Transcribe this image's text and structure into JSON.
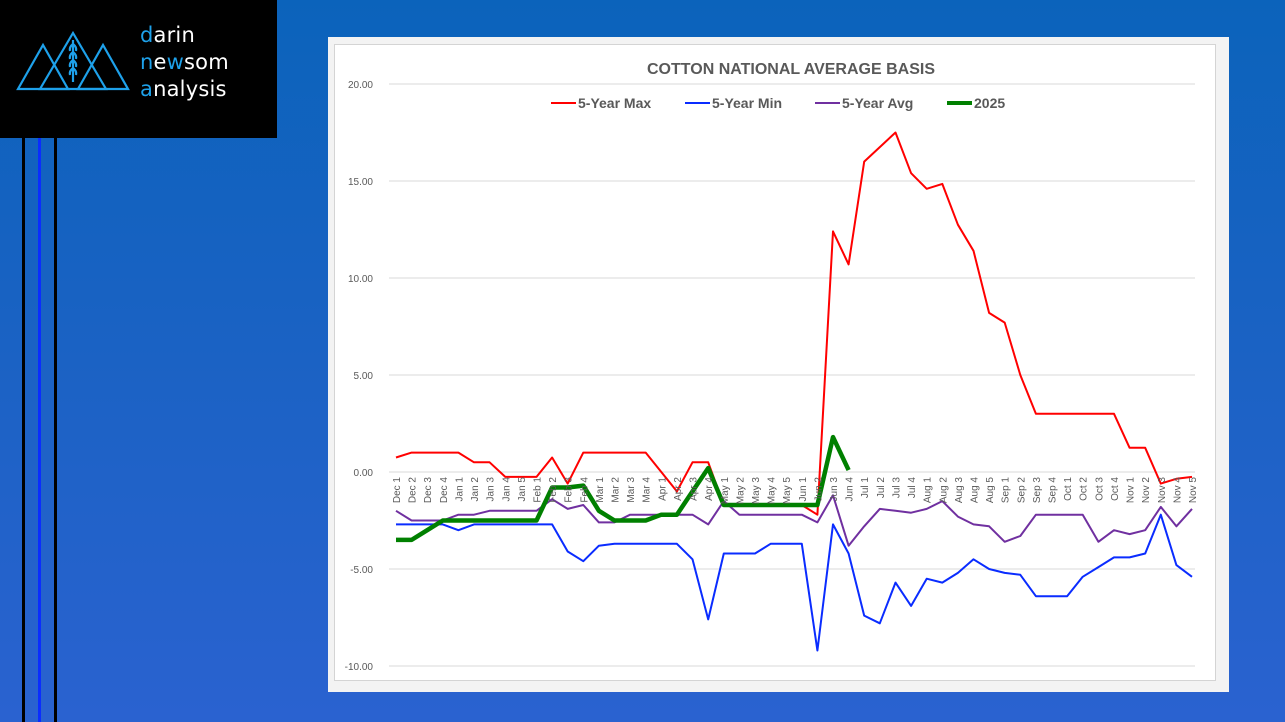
{
  "brand": {
    "line1_first": "d",
    "line1_rest": "arin",
    "line2_first": "n",
    "line2_mid1": "e",
    "line2_accent": "w",
    "line2_rest": "som",
    "line3_first": "a",
    "line3_rest": "nalysis",
    "accent_color": "#1ea1ea",
    "logo_icon": "mountains-wheat-icon"
  },
  "chart_data": {
    "type": "line",
    "title": "COTTON NATIONAL AVERAGE BASIS",
    "xlabel": "",
    "ylabel": "",
    "ylim": [
      -10,
      20
    ],
    "yticks": [
      "20.00",
      "15.00",
      "10.00",
      "5.00",
      "0.00",
      "-5.00",
      "-10.00"
    ],
    "ytick_values": [
      20,
      15,
      10,
      5,
      0,
      -5,
      -10
    ],
    "grid": true,
    "legend_position": "top",
    "categories": [
      "Dec 1",
      "Dec 2",
      "Dec 3",
      "Dec 4",
      "Jan 1",
      "Jan 2",
      "Jan 3",
      "Jan 4",
      "Jan 5",
      "Feb 1",
      "Feb 2",
      "Feb 3",
      "Feb 4",
      "Mar 1",
      "Mar 2",
      "Mar 3",
      "Mar 4",
      "Apr 1",
      "Apr 2",
      "Apr 3",
      "Apr 4",
      "May 1",
      "May 2",
      "May 3",
      "May 4",
      "May 5",
      "Jun 1",
      "Jun 2",
      "Jun 3",
      "Jun 4",
      "Jul 1",
      "Jul 2",
      "Jul 3",
      "Jul 4",
      "Aug 1",
      "Aug 2",
      "Aug 3",
      "Aug 4",
      "Aug 5",
      "Sep 1",
      "Sep 2",
      "Sep 3",
      "Sep 4",
      "Oct 1",
      "Oct 2",
      "Oct 3",
      "Oct 4",
      "Nov 1",
      "Nov 2",
      "Nov 3",
      "Nov 4",
      "Nov 5"
    ],
    "series": [
      {
        "name": "5-Year Max",
        "color": "#ff0000",
        "width": 2,
        "values": [
          0.75,
          1.0,
          1.0,
          1.0,
          1.0,
          0.5,
          0.5,
          -0.25,
          -0.25,
          -0.25,
          0.75,
          -0.6,
          1.0,
          1.0,
          1.0,
          1.0,
          1.0,
          0.0,
          -1.0,
          0.5,
          0.5,
          -1.7,
          -1.7,
          -1.7,
          -1.7,
          -1.7,
          -1.7,
          -2.2,
          12.4,
          10.7,
          16.0,
          16.75,
          17.5,
          15.4,
          14.6,
          14.85,
          12.75,
          11.4,
          8.2,
          7.7,
          5.0,
          3.0,
          3.0,
          3.0,
          3.0,
          3.0,
          3.0,
          1.25,
          1.25,
          -0.6,
          -0.35,
          -0.25
        ]
      },
      {
        "name": "5-Year Min",
        "color": "#0a2cff",
        "width": 2,
        "values": [
          -2.7,
          -2.7,
          -2.7,
          -2.7,
          -3.0,
          -2.7,
          -2.7,
          -2.7,
          -2.7,
          -2.7,
          -2.7,
          -4.1,
          -4.6,
          -3.8,
          -3.7,
          -3.7,
          -3.7,
          -3.7,
          -3.7,
          -4.5,
          -7.6,
          -4.2,
          -4.2,
          -4.2,
          -3.7,
          -3.7,
          -3.7,
          -9.2,
          -2.7,
          -4.2,
          -7.4,
          -7.8,
          -5.7,
          -6.9,
          -5.5,
          -5.7,
          -5.2,
          -4.5,
          -5.0,
          -5.2,
          -5.3,
          -6.4,
          -6.4,
          -6.4,
          -5.4,
          -4.9,
          -4.4,
          -4.4,
          -4.2,
          -2.2,
          -4.8,
          -5.4
        ]
      },
      {
        "name": "5-Year Avg",
        "color": "#7030a0",
        "width": 2,
        "values": [
          -2.0,
          -2.5,
          -2.5,
          -2.5,
          -2.2,
          -2.2,
          -2.0,
          -2.0,
          -2.0,
          -2.0,
          -1.4,
          -1.9,
          -1.7,
          -2.6,
          -2.6,
          -2.2,
          -2.2,
          -2.2,
          -2.2,
          -2.2,
          -2.7,
          -1.5,
          -2.2,
          -2.2,
          -2.2,
          -2.2,
          -2.2,
          -2.6,
          -1.2,
          -3.8,
          -2.8,
          -1.9,
          -2.0,
          -2.1,
          -1.9,
          -1.5,
          -2.3,
          -2.7,
          -2.8,
          -3.6,
          -3.3,
          -2.2,
          -2.2,
          -2.2,
          -2.2,
          -3.6,
          -3.0,
          -3.2,
          -3.0,
          -1.8,
          -2.8,
          -1.9
        ]
      },
      {
        "name": "2025",
        "color": "#008000",
        "width": 4.5,
        "values": [
          -3.5,
          -3.5,
          -3.0,
          -2.5,
          -2.5,
          -2.5,
          -2.5,
          -2.5,
          -2.5,
          -2.5,
          -0.8,
          -0.8,
          -0.7,
          -2.0,
          -2.5,
          -2.5,
          -2.5,
          -2.2,
          -2.2,
          -1.0,
          0.2,
          -1.7,
          -1.7,
          -1.7,
          -1.7,
          -1.7,
          -1.7,
          -1.7,
          1.8,
          0.1,
          null,
          null,
          null,
          null,
          null,
          null,
          null,
          null,
          null,
          null,
          null,
          null,
          null,
          null,
          null,
          null,
          null,
          null,
          null,
          null,
          null,
          null
        ]
      }
    ]
  }
}
